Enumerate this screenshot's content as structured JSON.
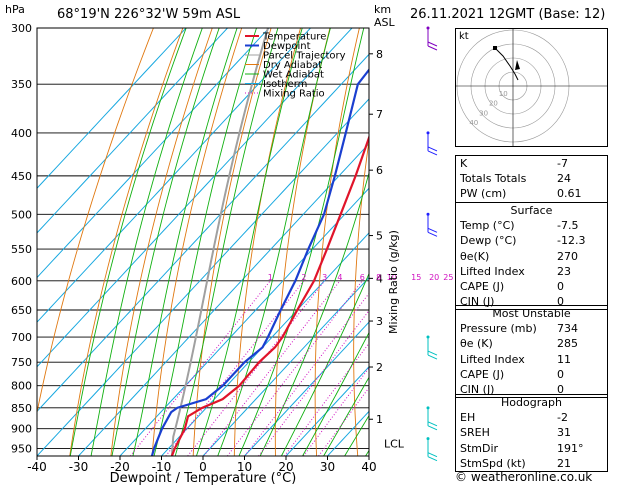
{
  "header": {
    "pressure_unit": "hPa",
    "location": "68°19'N 226°32'W 59m ASL",
    "km_label": "km",
    "asl_label": "ASL",
    "datetime": "26.11.2021 12GMT (Base: 12)"
  },
  "chart_data": {
    "type": "line",
    "xlabel": "Dewpoint / Temperature (°C)",
    "ylabel": "Mixing Ratio (g/kg)",
    "xlim": [
      -40,
      40
    ],
    "ylim": [
      970,
      300
    ],
    "x_ticks": [
      -40,
      -30,
      -20,
      -10,
      0,
      10,
      20,
      30,
      40
    ],
    "pressure_levels": [
      300,
      350,
      400,
      450,
      500,
      550,
      600,
      650,
      700,
      750,
      800,
      850,
      900,
      950
    ],
    "km_ticks": [
      {
        "km": "1",
        "p": 877
      },
      {
        "km": "2",
        "p": 760
      },
      {
        "km": "3",
        "p": 670
      },
      {
        "km": "4",
        "p": 596
      },
      {
        "km": "5",
        "p": 530
      },
      {
        "km": "6",
        "p": 443
      },
      {
        "km": "7",
        "p": 380
      },
      {
        "km": "8",
        "p": 322
      }
    ],
    "lcl": {
      "label": "LCL",
      "p": 920
    },
    "mixing_ratio_labels": [
      "1",
      "2",
      "3",
      "4",
      "6",
      "8",
      "10",
      "15",
      "20",
      "25"
    ],
    "mixing_ratio_values": [
      1,
      2,
      3,
      4,
      6,
      8,
      10,
      15,
      20,
      25
    ],
    "legend": [
      "Temperature",
      "Dewpoint",
      "Parcel Trajectory",
      "Dry Adiabat",
      "Wet Adiabat",
      "Isotherm",
      "Mixing Ratio"
    ],
    "legend_position": "top-right",
    "series": [
      {
        "name": "Temperature",
        "color": "#e0142a",
        "points": [
          [
            970,
            -7.5
          ],
          [
            950,
            -8.5
          ],
          [
            900,
            -10.5
          ],
          [
            870,
            -12.5
          ],
          [
            850,
            -11
          ],
          [
            830,
            -8
          ],
          [
            800,
            -7
          ],
          [
            750,
            -7.5
          ],
          [
            720,
            -7
          ],
          [
            700,
            -7.5
          ],
          [
            650,
            -10
          ],
          [
            600,
            -12.5
          ],
          [
            550,
            -16.5
          ],
          [
            500,
            -21
          ],
          [
            450,
            -26
          ],
          [
            400,
            -32
          ],
          [
            350,
            -39
          ],
          [
            325,
            -42
          ],
          [
            300,
            -46
          ]
        ]
      },
      {
        "name": "Dewpoint",
        "color": "#1a3fd0",
        "points": [
          [
            970,
            -12.3
          ],
          [
            950,
            -13.5
          ],
          [
            900,
            -16
          ],
          [
            860,
            -17.5
          ],
          [
            850,
            -17
          ],
          [
            830,
            -12
          ],
          [
            800,
            -11
          ],
          [
            750,
            -11
          ],
          [
            720,
            -10
          ],
          [
            700,
            -11
          ],
          [
            650,
            -14
          ],
          [
            600,
            -17
          ],
          [
            550,
            -21
          ],
          [
            500,
            -25
          ],
          [
            450,
            -31
          ],
          [
            400,
            -38
          ],
          [
            350,
            -46
          ],
          [
            325,
            -47
          ],
          [
            300,
            -51
          ]
        ]
      }
    ],
    "wind_barb_color": "#00c0c0"
  },
  "hodograph": {
    "unit": "kt",
    "rings": [
      "10",
      "20",
      "30",
      "40"
    ]
  },
  "indices": {
    "rows": [
      {
        "label": "K",
        "value": "-7"
      },
      {
        "label": "Totals Totals",
        "value": "24"
      },
      {
        "label": "PW (cm)",
        "value": "0.61"
      }
    ]
  },
  "surface": {
    "title": "Surface",
    "rows": [
      {
        "label": "Temp (°C)",
        "value": "-7.5"
      },
      {
        "label": "Dewp (°C)",
        "value": "-12.3"
      },
      {
        "label": "θe(K)",
        "value": "270"
      },
      {
        "label": "Lifted Index",
        "value": "23"
      },
      {
        "label": "CAPE (J)",
        "value": "0"
      },
      {
        "label": "CIN (J)",
        "value": "0"
      }
    ]
  },
  "most_unstable": {
    "title": "Most Unstable",
    "rows": [
      {
        "label": "Pressure (mb)",
        "value": "734"
      },
      {
        "label": "θe (K)",
        "value": "285"
      },
      {
        "label": "Lifted Index",
        "value": "11"
      },
      {
        "label": "CAPE (J)",
        "value": "0"
      },
      {
        "label": "CIN (J)",
        "value": "0"
      }
    ]
  },
  "hodograph_table": {
    "title": "Hodograph",
    "rows": [
      {
        "label": "EH",
        "value": "-2"
      },
      {
        "label": "SREH",
        "value": "31"
      },
      {
        "label": "StmDir",
        "value": "191°"
      },
      {
        "label": "StmSpd (kt)",
        "value": "21"
      }
    ]
  },
  "copyright": "© weatheronline.co.uk"
}
